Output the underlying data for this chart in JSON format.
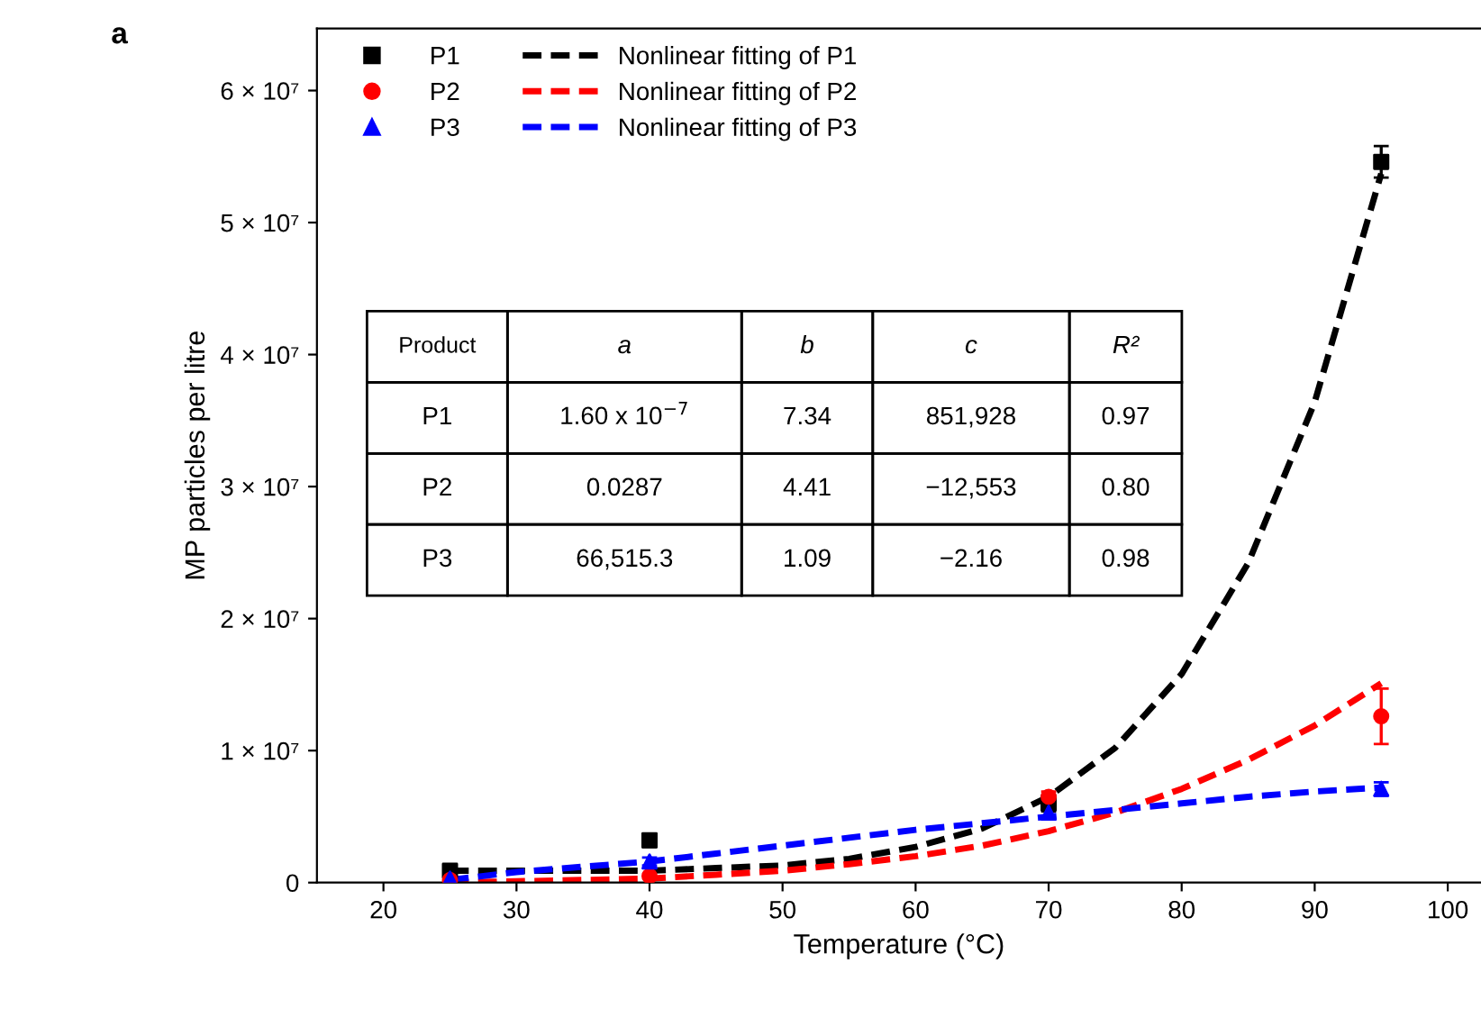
{
  "chart_data": {
    "type": "scatter",
    "xlabel": "Temperature (°C)",
    "ylabel": "MP particles per litre",
    "xlim": [
      15,
      102.5
    ],
    "xticks": [
      20,
      30,
      40,
      50,
      60,
      70,
      80,
      90,
      100
    ],
    "ylim": [
      0,
      64700000
    ],
    "yticks": [
      0,
      {
        "value": 10000000,
        "label": "1 × 10⁷"
      },
      {
        "value": 20000000,
        "label": "2 × 10⁷"
      },
      {
        "value": 30000000,
        "label": "3 × 10⁷"
      },
      {
        "value": 40000000,
        "label": "4 × 10⁷"
      },
      {
        "value": 50000000,
        "label": "5 × 10⁷"
      },
      {
        "value": 60000000,
        "label": "6 × 10⁷"
      }
    ],
    "grid": false,
    "legend": "top left",
    "x": [
      25,
      40,
      70,
      95
    ],
    "series": [
      {
        "name": "P1",
        "marker": "square",
        "color": "#000000",
        "values": [
          900000,
          3200000,
          6000000,
          54600000
        ],
        "errors": [
          300000,
          500000,
          600000,
          1200000
        ]
      },
      {
        "name": "P2",
        "marker": "circle",
        "color": "#ff0000",
        "values": [
          200000,
          500000,
          6500000,
          12600000
        ],
        "errors": [
          null,
          null,
          400000,
          2100000
        ]
      },
      {
        "name": "P3",
        "marker": "triangle",
        "color": "#0000ff",
        "values": [
          300000,
          1600000,
          5300000,
          7100000
        ],
        "errors": [
          null,
          300000,
          500000,
          500000
        ]
      },
      {
        "name": "Nonlinear fitting of P1",
        "type": "line",
        "line_style": "dashed",
        "color": "#000000",
        "x": [
          25,
          30,
          35,
          40,
          45,
          50,
          55,
          60,
          65,
          70,
          75,
          80,
          85,
          90,
          95
        ],
        "values": [
          900000,
          900000,
          900000,
          900000,
          1100000,
          1300000,
          1800000,
          2700000,
          4100000,
          6500000,
          10200000,
          15800000,
          24200000,
          36400000,
          53700000
        ]
      },
      {
        "name": "Nonlinear fitting of P2",
        "type": "line",
        "line_style": "dashed",
        "color": "#ff0000",
        "x": [
          25,
          30,
          35,
          40,
          45,
          50,
          55,
          60,
          65,
          70,
          75,
          80,
          85,
          90,
          95
        ],
        "values": [
          0,
          100000,
          200000,
          300000,
          600000,
          900000,
          1400000,
          2000000,
          2800000,
          3900000,
          5300000,
          7100000,
          9300000,
          11900000,
          15100000
        ]
      },
      {
        "name": "Nonlinear fitting of P3",
        "type": "line",
        "line_style": "dashed",
        "color": "#0000ff",
        "x": [
          25,
          30,
          35,
          40,
          45,
          50,
          55,
          60,
          65,
          70,
          75,
          80,
          85,
          90,
          95
        ],
        "values": [
          200000,
          800000,
          1200000,
          1600000,
          2200000,
          2800000,
          3400000,
          4000000,
          4500000,
          5000000,
          5500000,
          6000000,
          6500000,
          6900000,
          7200000
        ]
      }
    ],
    "annotations": [
      "a",
      "Product",
      "a",
      "b",
      "c",
      "R²",
      "P1",
      "1.60 x 10$^{−7}$",
      "7.34",
      "851,928",
      "0.97",
      "P2",
      "0.0287",
      "4.41",
      "−12,553",
      "0.80",
      "P3",
      "66,515.3",
      "1.09",
      "−2.16",
      "0.98"
    ]
  }
}
